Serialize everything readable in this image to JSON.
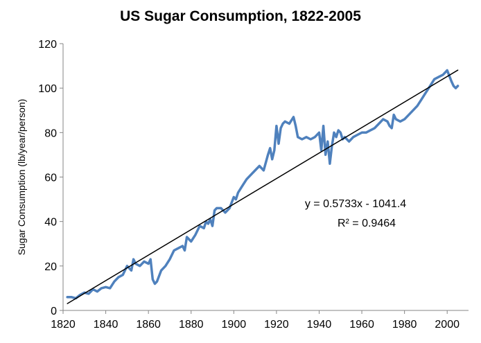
{
  "chart_data": {
    "type": "line",
    "title": "US Sugar Consumption, 1822-2005",
    "xlabel": "",
    "ylabel": "Sugar Consumption (lb/year/person)",
    "xlim": [
      1820,
      2010
    ],
    "ylim": [
      0,
      120
    ],
    "xticks": [
      1820,
      1840,
      1860,
      1880,
      1900,
      1920,
      1940,
      1960,
      1980,
      2000
    ],
    "yticks": [
      0,
      20,
      40,
      60,
      80,
      100,
      120
    ],
    "grid": false,
    "legend": "none",
    "series": [
      {
        "name": "Sugar Consumption",
        "color": "#4F81BD",
        "x": [
          1822,
          1824,
          1826,
          1828,
          1830,
          1832,
          1834,
          1836,
          1838,
          1840,
          1842,
          1844,
          1846,
          1848,
          1850,
          1852,
          1853,
          1854,
          1856,
          1858,
          1860,
          1861,
          1862,
          1863,
          1864,
          1866,
          1868,
          1870,
          1872,
          1874,
          1876,
          1877,
          1878,
          1880,
          1882,
          1884,
          1886,
          1887,
          1888,
          1889,
          1890,
          1891,
          1892,
          1894,
          1896,
          1898,
          1900,
          1901,
          1902,
          1904,
          1906,
          1908,
          1910,
          1912,
          1914,
          1916,
          1917,
          1918,
          1919,
          1920,
          1921,
          1922,
          1923,
          1924,
          1926,
          1928,
          1929,
          1930,
          1932,
          1934,
          1936,
          1938,
          1940,
          1941,
          1942,
          1943,
          1944,
          1945,
          1946,
          1947,
          1948,
          1949,
          1950,
          1951,
          1952,
          1954,
          1956,
          1958,
          1960,
          1962,
          1964,
          1966,
          1968,
          1970,
          1972,
          1973,
          1974,
          1975,
          1976,
          1978,
          1980,
          1982,
          1984,
          1986,
          1988,
          1990,
          1992,
          1994,
          1996,
          1998,
          2000,
          2002,
          2003,
          2004,
          2005
        ],
        "values": [
          6,
          6,
          5.5,
          7,
          8,
          7.5,
          9.5,
          8.5,
          10,
          10.5,
          10,
          13,
          15,
          16,
          20,
          18,
          23,
          21,
          20,
          22,
          21,
          23,
          14,
          12,
          13,
          18,
          20,
          23,
          27,
          28,
          29,
          27,
          33,
          31,
          34,
          38,
          37,
          40,
          39,
          41,
          38,
          45,
          46,
          46,
          44,
          46,
          51,
          50,
          53,
          56,
          59,
          61,
          63,
          65,
          63,
          70,
          73,
          68,
          72,
          83,
          75,
          82,
          84,
          85,
          84,
          87,
          83,
          78,
          77,
          78,
          77,
          78,
          80,
          72,
          83,
          70,
          76,
          66,
          74,
          80,
          78,
          81,
          80,
          77,
          78,
          76,
          78,
          79,
          80,
          80,
          81,
          82,
          84,
          86,
          85,
          83,
          82,
          88,
          86,
          85,
          86,
          88,
          90,
          92,
          95,
          98,
          101,
          104,
          105,
          106,
          108,
          103,
          101,
          100,
          101
        ]
      },
      {
        "name": "Linear trend",
        "color": "#000000",
        "x": [
          1822,
          2005
        ],
        "values": [
          3.1,
          108.1
        ]
      }
    ],
    "annotations": {
      "equation": "y = 0.5733x - 1041.4",
      "r_squared": "R² = 0.9464"
    }
  }
}
